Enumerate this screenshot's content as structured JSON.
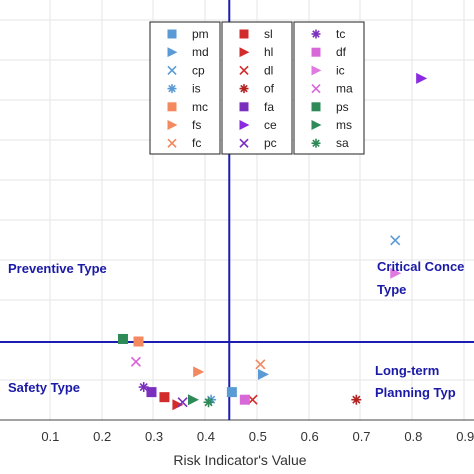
{
  "chart_data": {
    "type": "scatter",
    "xlabel": "Risk Indicator's Value",
    "ylabel": "",
    "xlim": [
      0.0,
      0.9
    ],
    "xticks": [
      "0.1",
      "0.2",
      "0.3",
      "0.4",
      "0.5",
      "0.6",
      "0.7",
      "0.8",
      "0.9"
    ],
    "threshold_x": 0.445,
    "grid": true,
    "legend_position": "top-center",
    "quadrant_labels": {
      "top_left": [
        "Preventive Type"
      ],
      "top_right": [
        "Critical Conce",
        "Type"
      ],
      "bottom_left": [
        "Safety Type"
      ],
      "bottom_right": [
        "Long-term",
        "Planning Typ"
      ]
    },
    "series": [
      {
        "name": "pm",
        "color": "#5b9bd5",
        "marker": "square",
        "points": [
          [
            0.45,
            0.13
          ]
        ]
      },
      {
        "name": "md",
        "color": "#5b9bd5",
        "marker": "triangle-right",
        "points": [
          [
            0.51,
            0.2
          ]
        ]
      },
      {
        "name": "cp",
        "color": "#5b9bd5",
        "marker": "x",
        "points": [
          [
            0.765,
            0.73
          ]
        ]
      },
      {
        "name": "is",
        "color": "#5b9bd5",
        "marker": "asterisk",
        "points": [
          [
            0.41,
            0.1
          ]
        ]
      },
      {
        "name": "mc",
        "color": "#f4895f",
        "marker": "square",
        "points": [
          [
            0.27,
            0.33
          ]
        ]
      },
      {
        "name": "fs",
        "color": "#f4895f",
        "marker": "triangle-right",
        "points": [
          [
            0.385,
            0.21
          ]
        ]
      },
      {
        "name": "fc",
        "color": "#f4895f",
        "marker": "x",
        "points": [
          [
            0.505,
            0.24
          ]
        ]
      },
      {
        "name": "sl",
        "color": "#d12b2b",
        "marker": "square",
        "points": [
          [
            0.32,
            0.11
          ]
        ]
      },
      {
        "name": "hl",
        "color": "#d12b2b",
        "marker": "triangle-right",
        "points": [
          [
            0.345,
            0.08
          ]
        ]
      },
      {
        "name": "dl",
        "color": "#d12b2b",
        "marker": "x",
        "points": [
          [
            0.49,
            0.1
          ]
        ]
      },
      {
        "name": "of",
        "color": "#b22222",
        "marker": "asterisk",
        "points": [
          [
            0.69,
            0.1
          ]
        ]
      },
      {
        "name": "fa",
        "color": "#7b2fbe",
        "marker": "square",
        "points": [
          [
            0.295,
            0.13
          ]
        ]
      },
      {
        "name": "ce",
        "color": "#8a2be2",
        "marker": "triangle-right",
        "points": [
          [
            0.815,
            1.37
          ]
        ]
      },
      {
        "name": "pc",
        "color": "#7b2fbe",
        "marker": "x",
        "points": [
          [
            0.355,
            0.09
          ]
        ]
      },
      {
        "name": "tc",
        "color": "#7b2fbe",
        "marker": "asterisk",
        "points": [
          [
            0.28,
            0.15
          ]
        ]
      },
      {
        "name": "df",
        "color": "#d868d8",
        "marker": "square",
        "points": [
          [
            0.475,
            0.1
          ]
        ]
      },
      {
        "name": "ic",
        "color": "#e07ae0",
        "marker": "triangle-right",
        "points": [
          [
            0.765,
            0.6
          ]
        ]
      },
      {
        "name": "ma",
        "color": "#d868d8",
        "marker": "x",
        "points": [
          [
            0.265,
            0.25
          ]
        ]
      },
      {
        "name": "ps",
        "color": "#2e8b57",
        "marker": "square",
        "points": [
          [
            0.24,
            0.34
          ]
        ]
      },
      {
        "name": "ms",
        "color": "#2e8b57",
        "marker": "triangle-right",
        "points": [
          [
            0.375,
            0.1
          ]
        ]
      },
      {
        "name": "sa",
        "color": "#2e8b57",
        "marker": "asterisk",
        "points": [
          [
            0.405,
            0.09
          ]
        ]
      }
    ]
  }
}
